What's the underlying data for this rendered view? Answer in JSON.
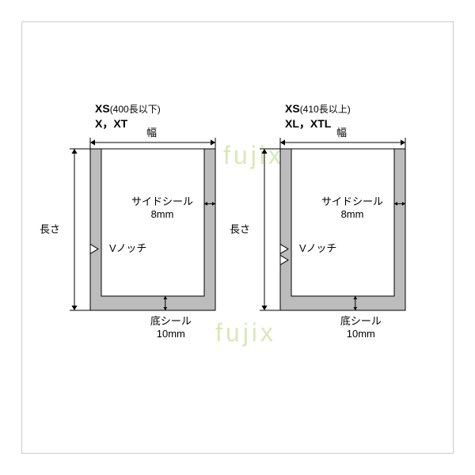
{
  "watermarks": {
    "top": "fujix",
    "bottom": "fujix",
    "color": "#d9e8b8"
  },
  "diagrams": [
    {
      "title_line1": "XS",
      "title_paren": "(400長以下)",
      "title_line2": "X，XT",
      "width_label": "幅",
      "length_label": "長さ",
      "side_seal_label": "サイドシール",
      "side_seal_value": "8mm",
      "v_notch_label": "Vノッチ",
      "bottom_seal_label": "底シール",
      "bottom_seal_value": "10mm",
      "notch_count": 1
    },
    {
      "title_line1": "XS",
      "title_paren": "(410長以上)",
      "title_line2": "XL，XTL",
      "width_label": "幅",
      "length_label": "長さ",
      "side_seal_label": "サイドシール",
      "side_seal_value": "8mm",
      "v_notch_label": "Vノッチ",
      "bottom_seal_label": "底シール",
      "bottom_seal_value": "10mm",
      "notch_count": 2
    }
  ],
  "style": {
    "seal_fill": "#bcbcbc",
    "outline": "#000000",
    "side_seal_w": 14,
    "bottom_seal_h": 18,
    "bag_w": 158,
    "bag_h": 204,
    "dim_gap": 14,
    "arrow_size": 6,
    "font_title": 14,
    "font_label": 13
  }
}
